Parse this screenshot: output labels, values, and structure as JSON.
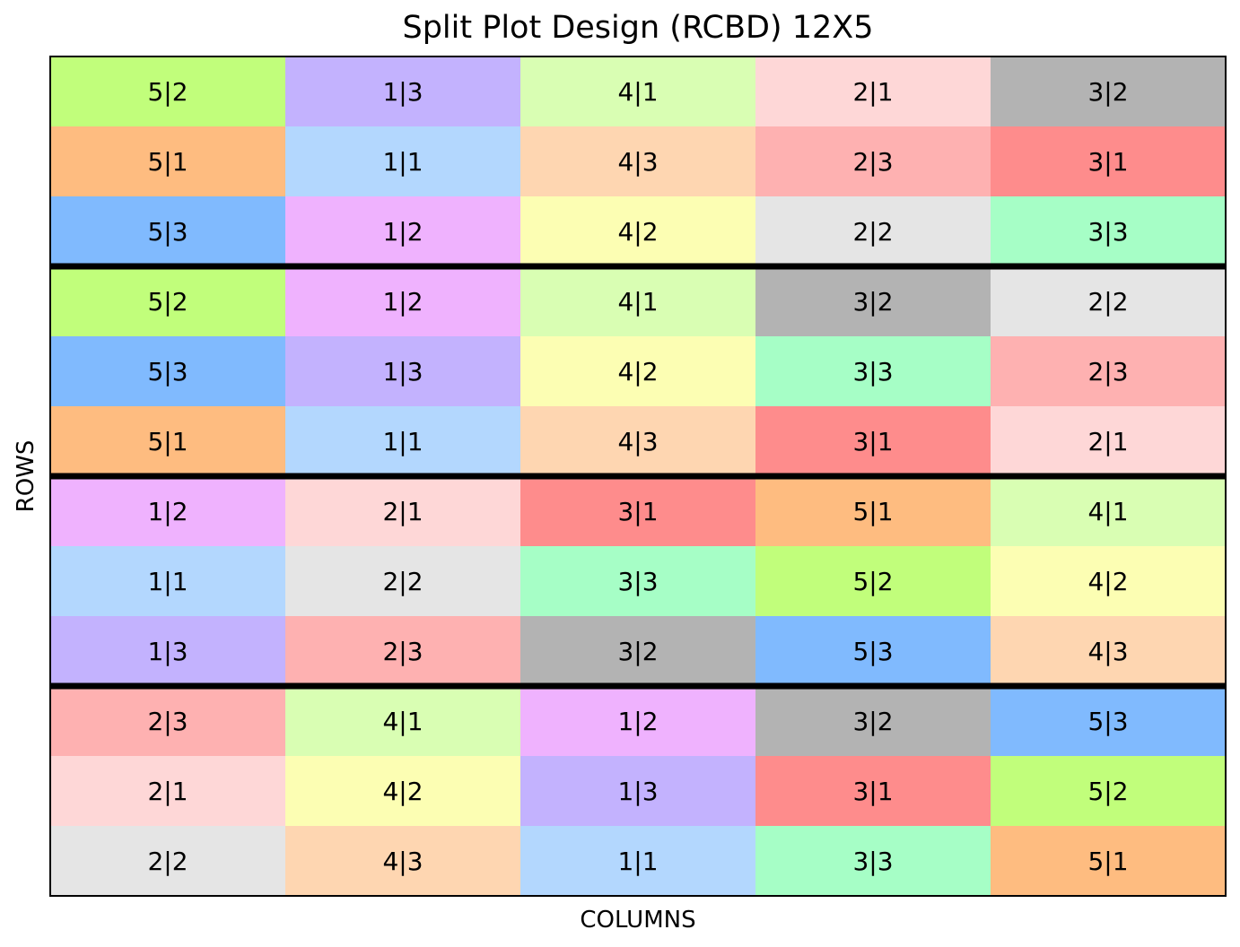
{
  "chart_data": {
    "type": "heatmap",
    "title": "Split Plot Design (RCBD) 12X5",
    "xlabel": "COLUMNS",
    "ylabel": "ROWS",
    "n_rows": 12,
    "n_cols": 5,
    "block_boundaries_after_rows": [
      3,
      6,
      9
    ],
    "rows": [
      [
        "5|2",
        "1|3",
        "4|1",
        "2|1",
        "3|2"
      ],
      [
        "5|1",
        "1|1",
        "4|3",
        "2|3",
        "3|1"
      ],
      [
        "5|3",
        "1|2",
        "4|2",
        "2|2",
        "3|3"
      ],
      [
        "5|2",
        "1|2",
        "4|1",
        "3|2",
        "2|2"
      ],
      [
        "5|3",
        "1|3",
        "4|2",
        "3|3",
        "2|3"
      ],
      [
        "5|1",
        "1|1",
        "4|3",
        "3|1",
        "2|1"
      ],
      [
        "1|2",
        "2|1",
        "3|1",
        "5|1",
        "4|1"
      ],
      [
        "1|1",
        "2|2",
        "3|3",
        "5|2",
        "4|2"
      ],
      [
        "1|3",
        "2|3",
        "3|2",
        "5|3",
        "4|3"
      ],
      [
        "2|3",
        "4|1",
        "1|2",
        "3|2",
        "5|3"
      ],
      [
        "2|1",
        "4|2",
        "1|3",
        "3|1",
        "5|2"
      ],
      [
        "2|2",
        "4|3",
        "1|1",
        "3|3",
        "5|1"
      ]
    ],
    "colors": {
      "1|1": "#b3d7fe",
      "1|2": "#efb2fe",
      "1|3": "#c3b2fe",
      "2|1": "#fed7d7",
      "2|2": "#e5e5e5",
      "2|3": "#feb1b1",
      "3|1": "#fe8c8c",
      "3|2": "#b3b3b3",
      "3|3": "#a6fec6",
      "4|1": "#d9feb3",
      "4|2": "#fcfeb3",
      "4|3": "#fed6b1",
      "5|1": "#febc80",
      "5|2": "#c1fe7b",
      "5|3": "#80bafe"
    },
    "grid": false,
    "legend": "none"
  }
}
